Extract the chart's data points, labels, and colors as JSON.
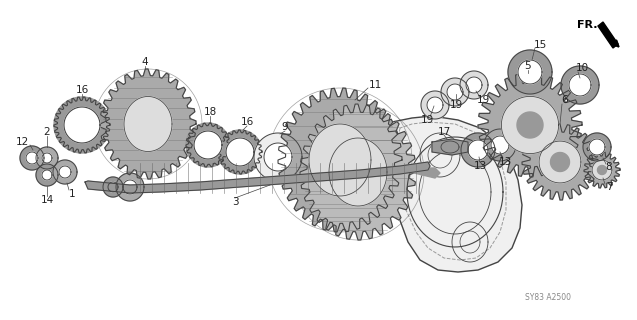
{
  "background_color": "#ffffff",
  "watermark": "SY83 A2500",
  "fr_label": "FR.",
  "text_color": "#222222",
  "line_color": "#444444",
  "gear_color": "#aaaaaa",
  "light_gray": "#dddddd",
  "dark_gray": "#666666",
  "mid_gray": "#999999"
}
